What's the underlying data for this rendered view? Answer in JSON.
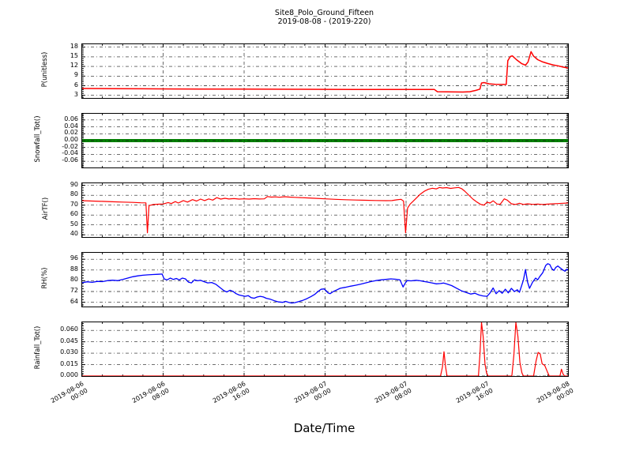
{
  "title": {
    "line1": "Site8_Polo_Ground_Fifteen",
    "line2": "2019-08-08 - (2019-220)"
  },
  "x_axis": {
    "label": "Date/Time",
    "range_hours": 48,
    "major_step_hours": 8,
    "minor_step_hours": 2,
    "tick_labels": [
      {
        "date": "2019-08-06",
        "time": "00:00"
      },
      {
        "date": "2019-08-06",
        "time": "08:00"
      },
      {
        "date": "2019-08-06",
        "time": "16:00"
      },
      {
        "date": "2019-08-07",
        "time": "00:00"
      },
      {
        "date": "2019-08-07",
        "time": "08:00"
      },
      {
        "date": "2019-08-07",
        "time": "16:00"
      },
      {
        "date": "2019-08-08",
        "time": "00:00"
      }
    ]
  },
  "chart_data": [
    {
      "type": "line",
      "id": "p-unitless",
      "ylabel": "P(unitless)",
      "color": "#ff0000",
      "line_width": 1.5,
      "ylim": [
        2.2,
        18.9
      ],
      "grid": true,
      "legend": "none",
      "ytick_values": [
        18,
        15,
        12,
        9,
        6,
        3
      ],
      "ytick_labels": [
        "18",
        "15",
        "12",
        "9",
        "6",
        "3"
      ],
      "y_minor_step": 0.6,
      "points": [
        [
          0,
          5.15
        ],
        [
          3,
          5.1
        ],
        [
          6,
          5.05
        ],
        [
          9,
          5.0
        ],
        [
          12,
          4.97
        ],
        [
          15,
          4.95
        ],
        [
          18,
          4.92
        ],
        [
          21,
          4.9
        ],
        [
          24,
          4.88
        ],
        [
          27,
          4.86
        ],
        [
          30,
          4.85
        ],
        [
          33,
          4.84
        ],
        [
          34.8,
          4.83
        ],
        [
          35.1,
          4.15
        ],
        [
          36,
          4.1
        ],
        [
          37.6,
          4.05
        ],
        [
          38.3,
          4.15
        ],
        [
          38.9,
          4.55
        ],
        [
          39.3,
          4.95
        ],
        [
          39.45,
          6.85
        ],
        [
          39.7,
          7.0
        ],
        [
          40.2,
          6.6
        ],
        [
          40.8,
          6.45
        ],
        [
          41.9,
          6.4
        ],
        [
          42.05,
          13.8
        ],
        [
          42.3,
          15.1
        ],
        [
          42.5,
          15.3
        ],
        [
          42.9,
          14.1
        ],
        [
          43.4,
          12.9
        ],
        [
          43.8,
          12.4
        ],
        [
          44.05,
          13.4
        ],
        [
          44.35,
          16.6
        ],
        [
          44.6,
          15.2
        ],
        [
          45,
          14.1
        ],
        [
          45.5,
          13.4
        ],
        [
          46,
          12.9
        ],
        [
          46.5,
          12.5
        ],
        [
          47,
          12.2
        ],
        [
          47.5,
          11.8
        ],
        [
          48,
          11.5
        ]
      ]
    },
    {
      "type": "line",
      "id": "snowfall-tot",
      "ylabel": "Snowfall_Tot()",
      "color": "#008000",
      "line_width": 4,
      "grid_over_line": true,
      "ylim": [
        -0.078,
        0.078
      ],
      "grid": true,
      "legend": "none",
      "ytick_values": [
        0.06,
        0.04,
        0.02,
        0.0,
        -0.02,
        -0.04,
        -0.06
      ],
      "ytick_labels": [
        "0.06",
        "0.04",
        "0.02",
        "0.00",
        "-0.02",
        "-0.04",
        "-0.06"
      ],
      "y_minor_step": 0.004,
      "points": [
        [
          0,
          0
        ],
        [
          48,
          0
        ]
      ]
    },
    {
      "type": "line",
      "id": "airtf",
      "ylabel": "AirTF()",
      "color": "#ff0000",
      "line_width": 1.2,
      "ylim": [
        37.8,
        92.1
      ],
      "grid": true,
      "legend": "none",
      "ytick_values": [
        90,
        80,
        70,
        60,
        50,
        40
      ],
      "ytick_labels": [
        "90",
        "80",
        "70",
        "60",
        "50",
        "40"
      ],
      "y_minor_step": 2.5,
      "points": [
        [
          0,
          74.5
        ],
        [
          1,
          74.1
        ],
        [
          2,
          73.8
        ],
        [
          3,
          73.4
        ],
        [
          4,
          73.1
        ],
        [
          5,
          72.8
        ],
        [
          5.8,
          72.4
        ],
        [
          6.3,
          72.3
        ],
        [
          6.45,
          42
        ],
        [
          6.6,
          69.5
        ],
        [
          7,
          70.6
        ],
        [
          7.5,
          70.9
        ],
        [
          8,
          71.2
        ],
        [
          8.5,
          72.6
        ],
        [
          8.8,
          71.6
        ],
        [
          9.2,
          73.6
        ],
        [
          9.5,
          72.1
        ],
        [
          10,
          74.6
        ],
        [
          10.4,
          73.1
        ],
        [
          10.9,
          75.6
        ],
        [
          11.3,
          74.1
        ],
        [
          11.7,
          76.1
        ],
        [
          12.1,
          74.6
        ],
        [
          12.5,
          76.3
        ],
        [
          12.9,
          75.1
        ],
        [
          13.3,
          77.6
        ],
        [
          13.7,
          76.1
        ],
        [
          14.1,
          76.9
        ],
        [
          14.5,
          76.2
        ],
        [
          15,
          76.6
        ],
        [
          15.5,
          76.1
        ],
        [
          16,
          76.4
        ],
        [
          16.5,
          76.1
        ],
        [
          17,
          76.5
        ],
        [
          17.5,
          76.2
        ],
        [
          18,
          76.4
        ],
        [
          18.3,
          78.7
        ],
        [
          18.7,
          78.1
        ],
        [
          19.1,
          78.4
        ],
        [
          19.5,
          78.0
        ],
        [
          20,
          78.5
        ],
        [
          20.5,
          78.1
        ],
        [
          21,
          77.9
        ],
        [
          22,
          77.4
        ],
        [
          23,
          76.9
        ],
        [
          24,
          76.4
        ],
        [
          25,
          75.9
        ],
        [
          26,
          75.5
        ],
        [
          27,
          75.2
        ],
        [
          28,
          74.9
        ],
        [
          29,
          74.7
        ],
        [
          30,
          74.5
        ],
        [
          30.6,
          74.6
        ],
        [
          31.1,
          75.4
        ],
        [
          31.5,
          75.9
        ],
        [
          31.75,
          74.1
        ],
        [
          31.95,
          42
        ],
        [
          32.15,
          67
        ],
        [
          32.4,
          71
        ],
        [
          32.7,
          74
        ],
        [
          33,
          77
        ],
        [
          33.4,
          81
        ],
        [
          33.8,
          84
        ],
        [
          34.2,
          86
        ],
        [
          34.6,
          87.1
        ],
        [
          35,
          86.4
        ],
        [
          35.3,
          87.9
        ],
        [
          35.6,
          87.3
        ],
        [
          36,
          87.7
        ],
        [
          36.4,
          86.9
        ],
        [
          36.8,
          87.5
        ],
        [
          37.2,
          87.9
        ],
        [
          37.5,
          86.6
        ],
        [
          37.8,
          84.1
        ],
        [
          38.2,
          80.1
        ],
        [
          38.6,
          76.1
        ],
        [
          39,
          73.1
        ],
        [
          39.4,
          70.6
        ],
        [
          39.7,
          70.1
        ],
        [
          40,
          72.9
        ],
        [
          40.3,
          72.1
        ],
        [
          40.6,
          74.4
        ],
        [
          41,
          71.1
        ],
        [
          41.3,
          70.9
        ],
        [
          41.7,
          76.4
        ],
        [
          42,
          75.1
        ],
        [
          42.4,
          71.3
        ],
        [
          42.8,
          70.7
        ],
        [
          43.2,
          71.9
        ],
        [
          43.6,
          70.7
        ],
        [
          44,
          71.3
        ],
        [
          44.5,
          70.8
        ],
        [
          45,
          71.1
        ],
        [
          45.5,
          70.7
        ],
        [
          46,
          71.0
        ],
        [
          46.5,
          71.3
        ],
        [
          47,
          71.6
        ],
        [
          47.5,
          71.9
        ],
        [
          48,
          72.1
        ]
      ]
    },
    {
      "type": "line",
      "id": "rh",
      "ylabel": "RH(%)",
      "color": "#0000ff",
      "line_width": 1.3,
      "ylim": [
        60.8,
        100.8
      ],
      "grid": true,
      "legend": "none",
      "ytick_values": [
        96,
        88,
        80,
        72,
        64
      ],
      "ytick_labels": [
        "96",
        "88",
        "80",
        "72",
        "64"
      ],
      "y_minor_step": 2,
      "points": [
        [
          0,
          78.5
        ],
        [
          0.5,
          79.2
        ],
        [
          1,
          78.8
        ],
        [
          1.5,
          79.5
        ],
        [
          2,
          79.3
        ],
        [
          2.5,
          80.1
        ],
        [
          3,
          80.4
        ],
        [
          3.5,
          80.1
        ],
        [
          4,
          81
        ],
        [
          4.5,
          82
        ],
        [
          5,
          83
        ],
        [
          5.5,
          83.6
        ],
        [
          6,
          84.1
        ],
        [
          6.5,
          84.4
        ],
        [
          7,
          84.6
        ],
        [
          7.5,
          84.8
        ],
        [
          7.9,
          85
        ],
        [
          8.1,
          81.3
        ],
        [
          8.4,
          80.6
        ],
        [
          8.7,
          82
        ],
        [
          9,
          81
        ],
        [
          9.3,
          81.7
        ],
        [
          9.6,
          80.6
        ],
        [
          9.9,
          82
        ],
        [
          10.2,
          81.4
        ],
        [
          10.5,
          79
        ],
        [
          10.8,
          78.4
        ],
        [
          11.1,
          80.7
        ],
        [
          11.4,
          80
        ],
        [
          11.7,
          80.3
        ],
        [
          12,
          79.4
        ],
        [
          12.4,
          78.4
        ],
        [
          12.8,
          78.7
        ],
        [
          13.2,
          77.4
        ],
        [
          13.6,
          75
        ],
        [
          14,
          72.6
        ],
        [
          14.3,
          71.6
        ],
        [
          14.6,
          72.9
        ],
        [
          14.9,
          72.1
        ],
        [
          15.2,
          70.4
        ],
        [
          15.5,
          69.4
        ],
        [
          15.8,
          68.9
        ],
        [
          16.1,
          68.4
        ],
        [
          16.4,
          68.9
        ],
        [
          16.7,
          67.4
        ],
        [
          17,
          67
        ],
        [
          17.3,
          67.9
        ],
        [
          17.6,
          68.4
        ],
        [
          17.9,
          67.9
        ],
        [
          18.2,
          66.9
        ],
        [
          18.6,
          66.2
        ],
        [
          19,
          65.1
        ],
        [
          19.4,
          64.2
        ],
        [
          19.8,
          63.9
        ],
        [
          20.1,
          64.6
        ],
        [
          20.4,
          63.9
        ],
        [
          20.7,
          63.4
        ],
        [
          21,
          63.7
        ],
        [
          21.4,
          64.5
        ],
        [
          21.8,
          65.4
        ],
        [
          22.2,
          66.6
        ],
        [
          22.6,
          68.2
        ],
        [
          23,
          70
        ],
        [
          23.3,
          72
        ],
        [
          23.6,
          73.6
        ],
        [
          23.9,
          73.9
        ],
        [
          24.1,
          72.6
        ],
        [
          24.3,
          70.9
        ],
        [
          24.5,
          70.4
        ],
        [
          24.8,
          71.9
        ],
        [
          25.1,
          73
        ],
        [
          25.5,
          74.4
        ],
        [
          26,
          75.1
        ],
        [
          26.5,
          75.9
        ],
        [
          27,
          76.6
        ],
        [
          27.5,
          77.4
        ],
        [
          28,
          78.4
        ],
        [
          28.5,
          79.3
        ],
        [
          29,
          80.1
        ],
        [
          29.5,
          80.6
        ],
        [
          30,
          81
        ],
        [
          30.5,
          81.4
        ],
        [
          31,
          81.1
        ],
        [
          31.4,
          80.6
        ],
        [
          31.7,
          75.3
        ],
        [
          31.9,
          78
        ],
        [
          32.1,
          80.1
        ],
        [
          32.5,
          79.9
        ],
        [
          33,
          80.3
        ],
        [
          33.4,
          80
        ],
        [
          33.8,
          79.4
        ],
        [
          34.2,
          78.9
        ],
        [
          34.6,
          78.3
        ],
        [
          35,
          77.7
        ],
        [
          35.4,
          77.9
        ],
        [
          35.7,
          78.3
        ],
        [
          36,
          77.6
        ],
        [
          36.5,
          76.4
        ],
        [
          37,
          74.4
        ],
        [
          37.5,
          72.4
        ],
        [
          38,
          71.1
        ],
        [
          38.4,
          70.1
        ],
        [
          38.8,
          70.7
        ],
        [
          39.2,
          69.4
        ],
        [
          39.6,
          68.7
        ],
        [
          40,
          68.4
        ],
        [
          40.3,
          70.9
        ],
        [
          40.6,
          74.6
        ],
        [
          40.9,
          70.3
        ],
        [
          41.2,
          72.6
        ],
        [
          41.5,
          70.7
        ],
        [
          41.8,
          73.7
        ],
        [
          42.1,
          71
        ],
        [
          42.4,
          74.3
        ],
        [
          42.7,
          71.9
        ],
        [
          43,
          73.3
        ],
        [
          43.2,
          71.4
        ],
        [
          43.4,
          76
        ],
        [
          43.6,
          80.6
        ],
        [
          43.8,
          88.4
        ],
        [
          44,
          79
        ],
        [
          44.2,
          74.3
        ],
        [
          44.5,
          79
        ],
        [
          44.8,
          82
        ],
        [
          45,
          80.7
        ],
        [
          45.2,
          83
        ],
        [
          45.5,
          86
        ],
        [
          45.8,
          91.4
        ],
        [
          46,
          92.7
        ],
        [
          46.2,
          92.1
        ],
        [
          46.4,
          89
        ],
        [
          46.6,
          87.7
        ],
        [
          46.8,
          90
        ],
        [
          47,
          91
        ],
        [
          47.2,
          89.7
        ],
        [
          47.5,
          88
        ],
        [
          47.7,
          87.1
        ],
        [
          47.9,
          88.7
        ],
        [
          48,
          88
        ]
      ]
    },
    {
      "type": "line",
      "id": "rainfall-tot",
      "ylabel": "Rainfall_Tot()",
      "color": "#ff0000",
      "line_width": 1.2,
      "ylim": [
        0,
        0.0706
      ],
      "grid": true,
      "legend": "none",
      "ytick_values": [
        0.06,
        0.045,
        0.03,
        0.015,
        0.0
      ],
      "ytick_labels": [
        "0.060",
        "0.045",
        "0.030",
        "0.015",
        "0.000"
      ],
      "y_minor_step": 0.003,
      "points": [
        [
          0,
          0
        ],
        [
          35.4,
          0
        ],
        [
          35.6,
          0.012
        ],
        [
          35.75,
          0.032
        ],
        [
          35.9,
          0.012
        ],
        [
          36.05,
          0
        ],
        [
          39.15,
          0
        ],
        [
          39.3,
          0.028
        ],
        [
          39.45,
          0.0705
        ],
        [
          39.62,
          0.052
        ],
        [
          39.8,
          0.016
        ],
        [
          39.95,
          0.004
        ],
        [
          40.1,
          0
        ],
        [
          42.45,
          0
        ],
        [
          42.65,
          0.028
        ],
        [
          42.85,
          0.0705
        ],
        [
          43.05,
          0.052
        ],
        [
          43.25,
          0.018
        ],
        [
          43.45,
          0.004
        ],
        [
          43.6,
          0
        ],
        [
          44.6,
          0
        ],
        [
          44.85,
          0.02
        ],
        [
          45.05,
          0.031
        ],
        [
          45.25,
          0.029
        ],
        [
          45.45,
          0.016
        ],
        [
          45.7,
          0.014
        ],
        [
          45.95,
          0.006
        ],
        [
          46.15,
          0
        ],
        [
          47.2,
          0
        ],
        [
          47.35,
          0.009
        ],
        [
          47.5,
          0.003
        ],
        [
          47.65,
          0
        ],
        [
          48,
          0
        ]
      ]
    }
  ]
}
